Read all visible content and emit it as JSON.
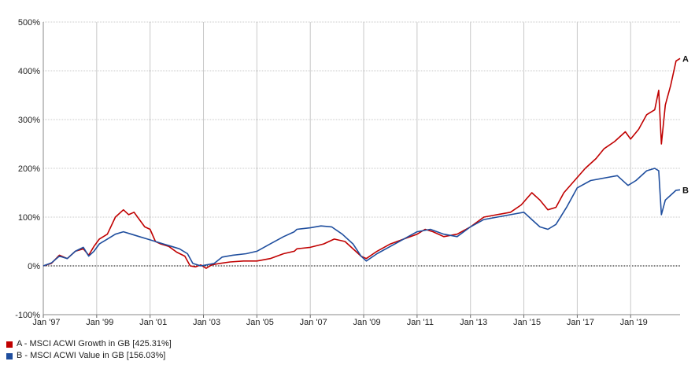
{
  "chart_data": {
    "type": "line",
    "title": "",
    "xlabel": "",
    "ylabel": "",
    "ylim": [
      -100,
      500
    ],
    "y_tick_labels": [
      "500%",
      "400%",
      "300%",
      "200%",
      "100%",
      "0%",
      "-100%"
    ],
    "y_tick_values": [
      500,
      400,
      300,
      200,
      100,
      0,
      -100
    ],
    "x_tick_labels": [
      "Jan '97",
      "Jan '99",
      "Jan '01",
      "Jan '03",
      "Jan '05",
      "Jan '07",
      "Jan '09",
      "Jan '11",
      "Jan '13",
      "Jan '15",
      "Jan '17",
      "Jan '19"
    ],
    "x_tick_values": [
      1997,
      1999,
      2001,
      2003,
      2005,
      2007,
      2009,
      2011,
      2013,
      2015,
      2017,
      2019
    ],
    "xlim": [
      1997.0,
      2020.85
    ],
    "grid": true,
    "series": [
      {
        "name": "A - MSCI ACWI Growth in GB [425.31%]",
        "end_label": "A",
        "color": "#c00000",
        "x": [
          1997.0,
          1997.3,
          1997.6,
          1997.9,
          1998.2,
          1998.5,
          1998.7,
          1998.9,
          1999.1,
          1999.4,
          1999.7,
          2000.0,
          2000.2,
          2000.4,
          2000.6,
          2000.8,
          2001.0,
          2001.2,
          2001.4,
          2001.7,
          2002.0,
          2002.3,
          2002.5,
          2002.7,
          2002.9,
          2003.1,
          2003.3,
          2003.6,
          2004.0,
          2004.5,
          2005.0,
          2005.5,
          2006.0,
          2006.4,
          2006.5,
          2007.0,
          2007.5,
          2007.9,
          2008.3,
          2008.7,
          2008.9,
          2009.1,
          2009.5,
          2010.0,
          2010.5,
          2011.0,
          2011.3,
          2011.6,
          2012.0,
          2012.5,
          2013.0,
          2013.5,
          2014.0,
          2014.5,
          2014.9,
          2015.3,
          2015.6,
          2015.9,
          2016.2,
          2016.5,
          2016.9,
          2017.3,
          2017.7,
          2018.0,
          2018.4,
          2018.8,
          2019.0,
          2019.3,
          2019.6,
          2019.9,
          2020.05,
          2020.15,
          2020.3,
          2020.5,
          2020.7,
          2020.85
        ],
        "values": [
          0,
          5,
          22,
          15,
          30,
          35,
          22,
          40,
          55,
          65,
          100,
          115,
          105,
          110,
          95,
          80,
          75,
          50,
          45,
          40,
          28,
          20,
          0,
          -2,
          2,
          -5,
          2,
          5,
          8,
          10,
          10,
          15,
          25,
          30,
          35,
          38,
          45,
          55,
          50,
          30,
          20,
          15,
          30,
          45,
          55,
          65,
          75,
          70,
          60,
          65,
          80,
          100,
          105,
          110,
          125,
          150,
          135,
          115,
          120,
          150,
          175,
          200,
          220,
          240,
          255,
          275,
          260,
          280,
          310,
          320,
          360,
          250,
          330,
          370,
          420,
          425.31
        ]
      },
      {
        "name": "B - MSCI ACWI Value in GB [156.03%]",
        "end_label": "B",
        "color": "#1f4e9e",
        "x": [
          1997.0,
          1997.3,
          1997.6,
          1997.9,
          1998.2,
          1998.5,
          1998.7,
          1998.9,
          1999.1,
          1999.4,
          1999.7,
          2000.0,
          2000.3,
          2000.6,
          2000.9,
          2001.2,
          2001.5,
          2001.8,
          2002.1,
          2002.4,
          2002.6,
          2002.9,
          2003.1,
          2003.4,
          2003.7,
          2004.1,
          2004.6,
          2005.0,
          2005.5,
          2006.0,
          2006.4,
          2006.5,
          2007.0,
          2007.4,
          2007.8,
          2008.2,
          2008.6,
          2008.9,
          2009.1,
          2009.5,
          2010.0,
          2010.5,
          2011.0,
          2011.5,
          2012.0,
          2012.5,
          2013.0,
          2013.5,
          2014.0,
          2014.5,
          2015.0,
          2015.3,
          2015.6,
          2015.9,
          2016.2,
          2016.6,
          2017.0,
          2017.5,
          2018.0,
          2018.5,
          2018.9,
          2019.2,
          2019.6,
          2019.9,
          2020.05,
          2020.15,
          2020.3,
          2020.5,
          2020.7,
          2020.85
        ],
        "values": [
          0,
          6,
          20,
          15,
          30,
          38,
          20,
          30,
          45,
          55,
          65,
          70,
          65,
          60,
          55,
          50,
          45,
          40,
          35,
          25,
          5,
          0,
          2,
          5,
          18,
          22,
          25,
          30,
          45,
          60,
          70,
          75,
          78,
          82,
          80,
          65,
          45,
          20,
          10,
          25,
          40,
          55,
          70,
          75,
          65,
          60,
          80,
          95,
          100,
          105,
          110,
          95,
          80,
          75,
          85,
          120,
          160,
          175,
          180,
          185,
          165,
          175,
          195,
          200,
          195,
          105,
          135,
          145,
          155,
          156.03
        ]
      }
    ]
  },
  "legend": {
    "a_label": "A - MSCI ACWI Growth in GB [425.31%]",
    "b_label": "B - MSCI ACWI Value in GB [156.03%]",
    "a_color": "#c00000",
    "b_color": "#1f4e9e"
  }
}
